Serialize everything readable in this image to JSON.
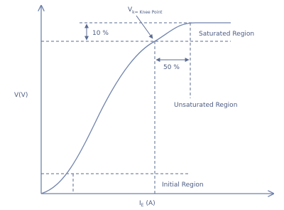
{
  "labels": {
    "knee_point": {
      "symbol": "V",
      "subscript": "k= Knee Point"
    },
    "ten_percent": "10 %",
    "saturated_region": "Saturated Region",
    "fifty_percent": "50 %",
    "unsaturated_region": "Unsaturated Region",
    "y_axis": "V(V)",
    "initial_region": "Initial Region",
    "x_axis": {
      "symbol": "I",
      "subscript": "E",
      "unit": "(A)"
    }
  }
}
